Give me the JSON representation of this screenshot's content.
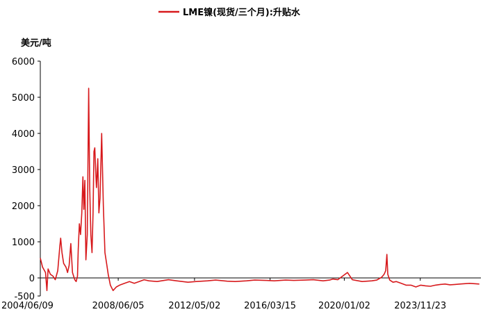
{
  "chart_data": {
    "type": "line",
    "title": "",
    "ylabel": "美元/吨",
    "xlabel": "",
    "legend": {
      "position": "top",
      "entries": [
        "LME镍(现货/三个月):升贴水"
      ]
    },
    "ylim": [
      -500,
      6000
    ],
    "yticks": [
      6000,
      5000,
      4000,
      3000,
      2000,
      1000,
      0,
      -500
    ],
    "xlim": [
      "2004-06-09",
      "2026-12-31"
    ],
    "xticks": [
      "2004/06/09",
      "2008/06/05",
      "2012/05/02",
      "2016/03/15",
      "2020/01/02",
      "2023/11/23"
    ],
    "grid": false,
    "series_color": "#d7191c",
    "series": [
      {
        "name": "LME镍(现货/三个月):升贴水",
        "x": [
          "2004-06-09",
          "2004-07-20",
          "2004-09-15",
          "2004-10-10",
          "2004-11-01",
          "2004-12-15",
          "2005-02-01",
          "2005-03-15",
          "2005-05-01",
          "2005-06-10",
          "2005-06-25",
          "2005-07-20",
          "2005-08-20",
          "2005-10-01",
          "2005-11-01",
          "2005-12-01",
          "2006-01-01",
          "2006-02-01",
          "2006-03-15",
          "2006-04-10",
          "2006-05-05",
          "2006-05-20",
          "2006-06-10",
          "2006-07-01",
          "2006-07-25",
          "2006-08-15",
          "2006-09-01",
          "2006-09-20",
          "2006-10-10",
          "2006-11-05",
          "2006-12-01",
          "2006-12-20",
          "2007-01-10",
          "2007-02-01",
          "2007-02-20",
          "2007-03-10",
          "2007-03-25",
          "2007-04-10",
          "2007-04-25",
          "2007-05-05",
          "2007-05-20",
          "2007-06-10",
          "2007-07-01",
          "2007-08-01",
          "2007-09-01",
          "2007-10-01",
          "2007-11-01",
          "2007-12-01",
          "2008-01-10",
          "2008-03-01",
          "2008-05-01",
          "2008-07-01",
          "2008-10-01",
          "2009-01-01",
          "2009-04-01",
          "2009-07-01",
          "2009-10-01",
          "2010-01-01",
          "2010-06-01",
          "2011-01-01",
          "2011-06-01",
          "2012-01-01",
          "2012-06-01",
          "2013-01-01",
          "2013-06-01",
          "2014-01-01",
          "2014-06-01",
          "2015-01-01",
          "2015-06-01",
          "2016-01-01",
          "2016-06-01",
          "2017-01-01",
          "2017-06-01",
          "2018-01-01",
          "2018-06-01",
          "2018-12-01",
          "2019-04-01",
          "2019-06-01",
          "2019-09-01",
          "2019-12-01",
          "2020-03-01",
          "2020-06-01",
          "2020-12-01",
          "2021-06-01",
          "2021-09-01",
          "2021-12-01",
          "2022-01-15",
          "2022-02-15",
          "2022-03-08",
          "2022-03-25",
          "2022-05-01",
          "2022-07-01",
          "2022-09-01",
          "2022-12-01",
          "2023-03-01",
          "2023-06-01",
          "2023-09-01",
          "2023-12-01",
          "2024-03-01",
          "2024-06-01",
          "2024-09-01",
          "2024-12-01",
          "2025-03-01",
          "2025-06-01",
          "2025-09-01",
          "2025-12-01",
          "2026-03-01",
          "2026-06-01",
          "2026-09-01",
          "2026-12-01"
        ],
        "values": [
          550,
          300,
          150,
          -350,
          250,
          100,
          50,
          -50,
          200,
          900,
          1100,
          700,
          400,
          300,
          150,
          350,
          950,
          150,
          -50,
          -100,
          50,
          800,
          1500,
          1200,
          1800,
          2800,
          1900,
          2700,
          500,
          1200,
          5250,
          2500,
          1200,
          700,
          1800,
          3500,
          3600,
          3000,
          2500,
          2800,
          3300,
          1800,
          2200,
          4000,
          2000,
          700,
          400,
          100,
          -200,
          -350,
          -250,
          -200,
          -150,
          -100,
          -150,
          -100,
          -50,
          -80,
          -100,
          -50,
          -80,
          -120,
          -100,
          -80,
          -60,
          -90,
          -100,
          -80,
          -60,
          -70,
          -80,
          -60,
          -70,
          -60,
          -50,
          -80,
          -60,
          -30,
          -50,
          50,
          150,
          -50,
          -100,
          -80,
          -60,
          20,
          100,
          200,
          650,
          100,
          -60,
          -120,
          -100,
          -150,
          -200,
          -200,
          -250,
          -200,
          -220,
          -230,
          -200,
          -180,
          -170,
          -190,
          -180,
          -170,
          -160,
          -150,
          -160,
          -170
        ]
      }
    ]
  }
}
